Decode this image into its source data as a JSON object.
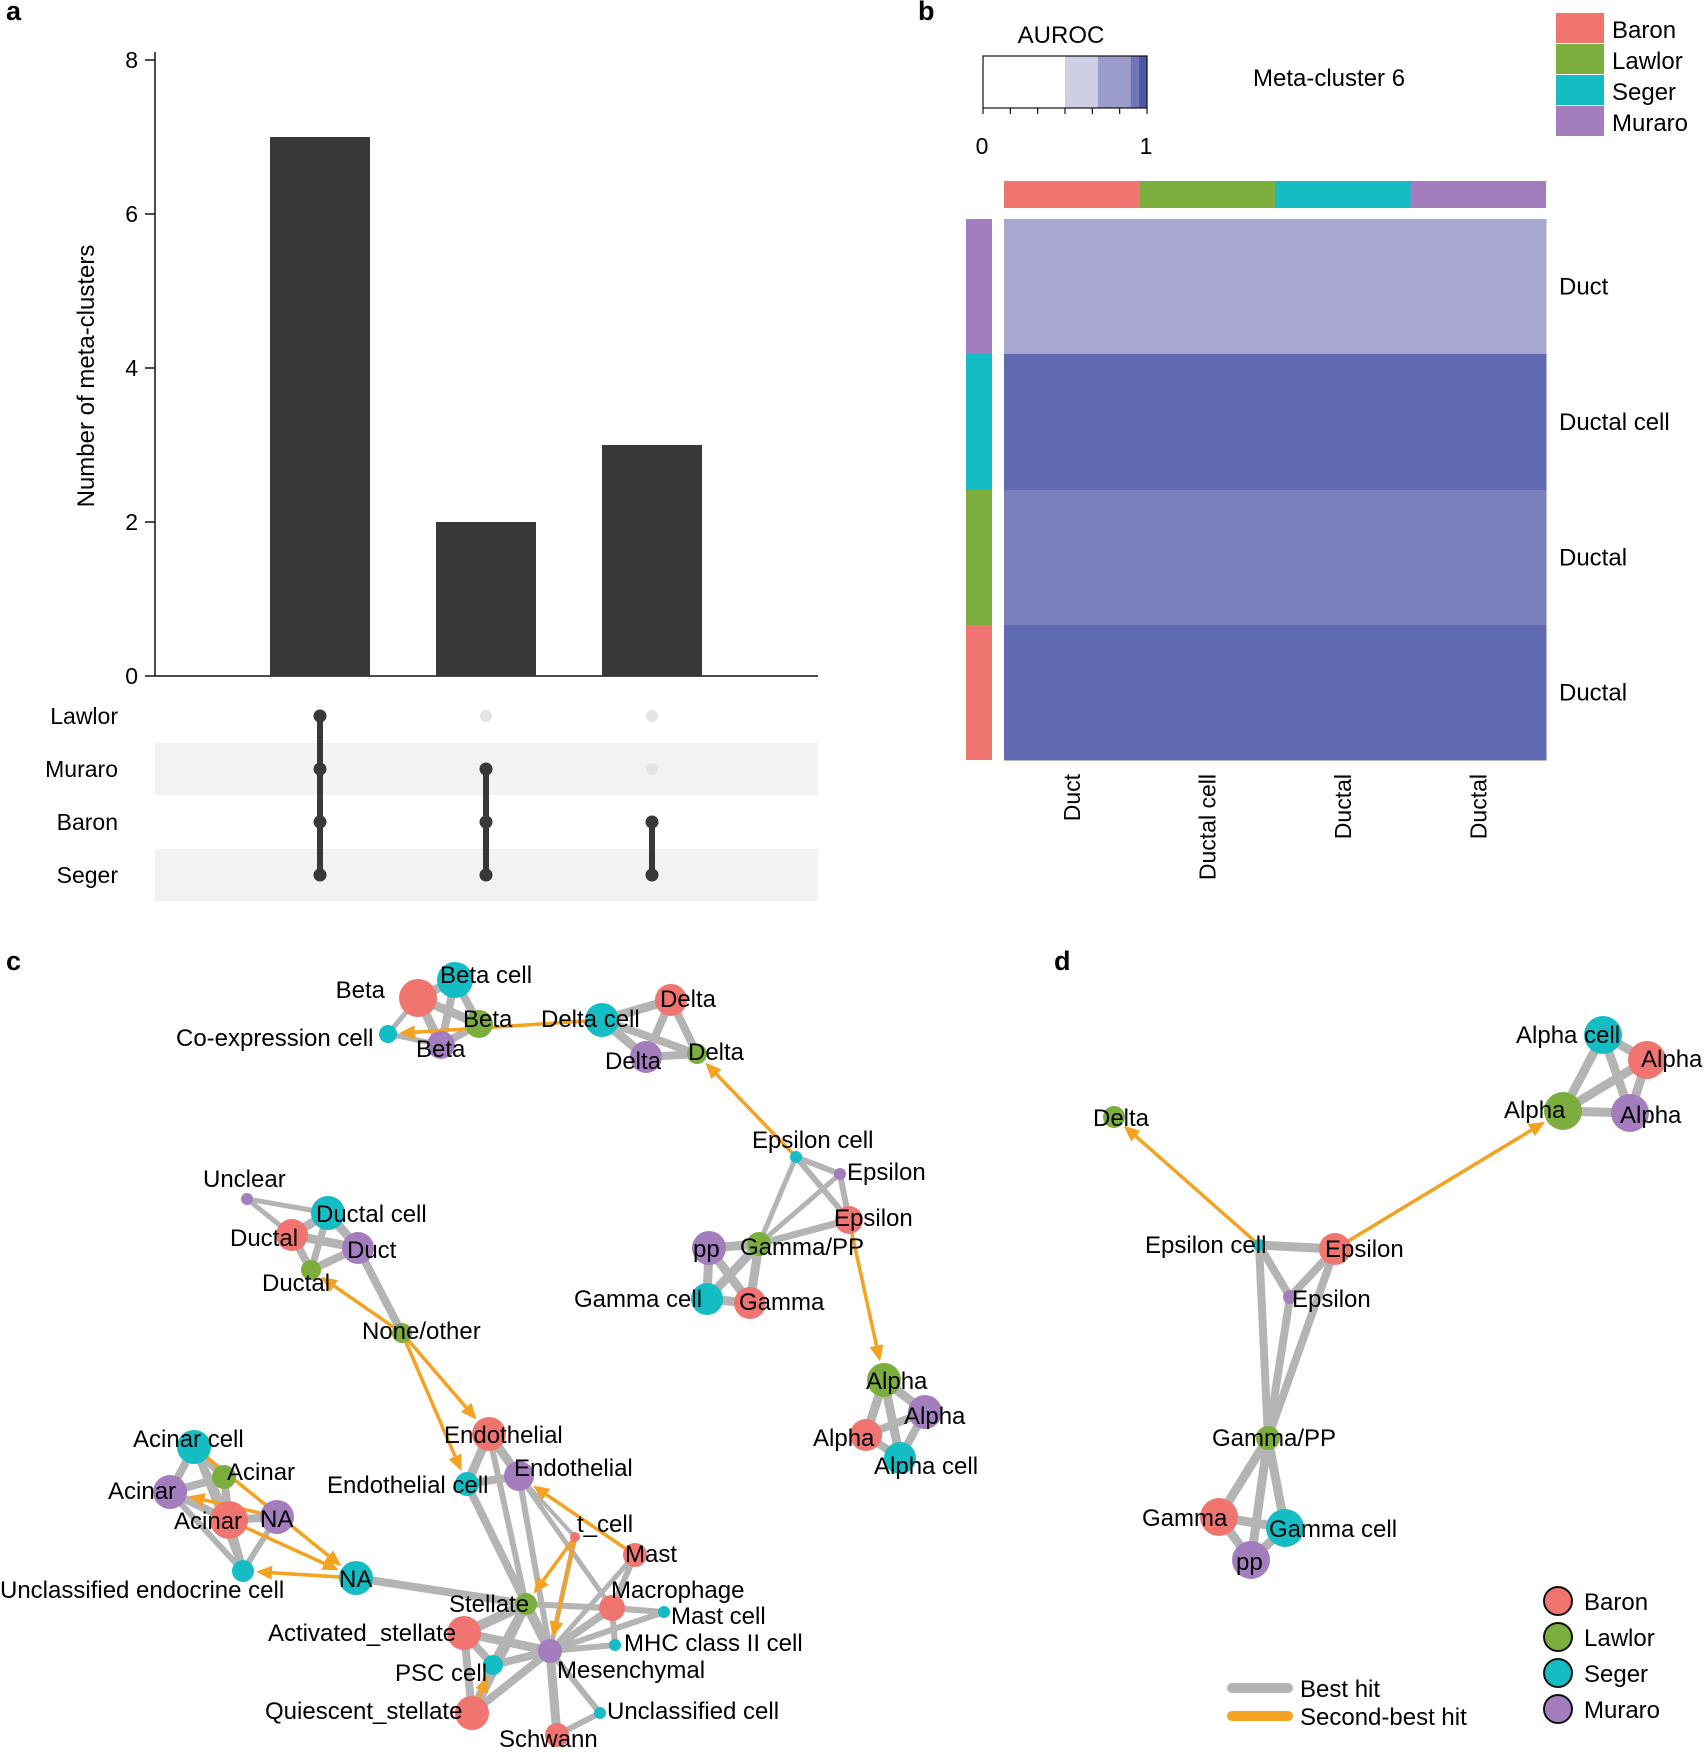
{
  "colors": {
    "Baron": "#f07470",
    "Lawlor": "#7cae3e",
    "Seger": "#14bcc4",
    "Muraro": "#a47dbe",
    "bar": "#383838",
    "best_hit": "#b4b4b4",
    "second_hit": "#f4a21f"
  },
  "panels": {
    "a": "a",
    "b": "b",
    "c": "c",
    "d": "d"
  },
  "chart_data": [
    {
      "panel": "a",
      "type": "bar",
      "ylabel": "Number of meta-clusters",
      "ylim": [
        0,
        8
      ],
      "yticks": [
        0,
        2,
        4,
        6,
        8
      ],
      "values": [
        7,
        2,
        3
      ],
      "sets": [
        "Lawlor",
        "Muraro",
        "Baron",
        "Seger"
      ],
      "memberships": [
        [
          "Lawlor",
          "Muraro",
          "Baron",
          "Seger"
        ],
        [
          "Muraro",
          "Baron",
          "Seger"
        ],
        [
          "Baron",
          "Seger"
        ]
      ]
    },
    {
      "panel": "b",
      "type": "heatmap",
      "title": "Meta-cluster 6",
      "colorbar_label": "AUROC",
      "colorbar_ticks": [
        "0",
        "1"
      ],
      "columns": [
        {
          "label": "Duct",
          "dataset": "Baron"
        },
        {
          "label": "Ductal cell",
          "dataset": "Lawlor"
        },
        {
          "label": "Ductal",
          "dataset": "Seger"
        },
        {
          "label": "Ductal",
          "dataset": "Muraro"
        }
      ],
      "rows": [
        {
          "label": "Duct",
          "dataset": "Muraro"
        },
        {
          "label": "Ductal cell",
          "dataset": "Seger"
        },
        {
          "label": "Ductal",
          "dataset": "Lawlor"
        },
        {
          "label": "Ductal",
          "dataset": "Baron"
        }
      ],
      "values": [
        [
          0.8,
          0.8,
          0.8,
          0.8
        ],
        [
          0.95,
          0.95,
          0.95,
          0.95
        ],
        [
          0.9,
          0.9,
          0.9,
          0.9
        ],
        [
          0.95,
          0.95,
          0.95,
          0.95
        ]
      ],
      "legend": [
        "Baron",
        "Lawlor",
        "Seger",
        "Muraro"
      ]
    },
    {
      "panel": "c",
      "type": "network",
      "nodes": [
        {
          "id": "c_beta_b",
          "label": "Beta",
          "dataset": "Baron"
        },
        {
          "id": "c_betacell",
          "label": "Beta cell",
          "dataset": "Seger"
        },
        {
          "id": "c_beta_l",
          "label": "Beta",
          "dataset": "Lawlor"
        },
        {
          "id": "c_beta_m",
          "label": "Beta",
          "dataset": "Muraro"
        },
        {
          "id": "c_coexp",
          "label": "Co-expression cell",
          "dataset": "Seger"
        },
        {
          "id": "c_deltacell",
          "label": "Delta cell",
          "dataset": "Seger"
        },
        {
          "id": "c_delta_b",
          "label": "Delta",
          "dataset": "Baron"
        },
        {
          "id": "c_delta_m",
          "label": "Delta",
          "dataset": "Muraro"
        },
        {
          "id": "c_delta_l",
          "label": "Delta",
          "dataset": "Lawlor"
        },
        {
          "id": "c_epscell",
          "label": "Epsilon cell",
          "dataset": "Seger"
        },
        {
          "id": "c_eps_m",
          "label": "Epsilon",
          "dataset": "Muraro"
        },
        {
          "id": "c_eps_b",
          "label": "Epsilon",
          "dataset": "Baron"
        },
        {
          "id": "c_pp",
          "label": "pp",
          "dataset": "Muraro"
        },
        {
          "id": "c_gammapp",
          "label": "Gamma/PP",
          "dataset": "Lawlor"
        },
        {
          "id": "c_gammacell",
          "label": "Gamma cell",
          "dataset": "Seger"
        },
        {
          "id": "c_gamma_b",
          "label": "Gamma",
          "dataset": "Baron"
        },
        {
          "id": "c_alpha_l",
          "label": "Alpha",
          "dataset": "Lawlor"
        },
        {
          "id": "c_alpha_m",
          "label": "Alpha",
          "dataset": "Muraro"
        },
        {
          "id": "c_alpha_b",
          "label": "Alpha",
          "dataset": "Baron"
        },
        {
          "id": "c_alphacell",
          "label": "Alpha cell",
          "dataset": "Seger"
        },
        {
          "id": "c_unclear",
          "label": "Unclear",
          "dataset": "Muraro"
        },
        {
          "id": "c_ductalcell",
          "label": "Ductal cell",
          "dataset": "Seger"
        },
        {
          "id": "c_ductal_b",
          "label": "Ductal",
          "dataset": "Baron"
        },
        {
          "id": "c_duct_m",
          "label": "Duct",
          "dataset": "Muraro"
        },
        {
          "id": "c_ductal_l",
          "label": "Ductal",
          "dataset": "Lawlor"
        },
        {
          "id": "c_none",
          "label": "None/other",
          "dataset": "Lawlor"
        },
        {
          "id": "c_endo_b",
          "label": "Endothelial",
          "dataset": "Baron"
        },
        {
          "id": "c_endo_m",
          "label": "Endothelial",
          "dataset": "Muraro"
        },
        {
          "id": "c_endocell",
          "label": "Endothelial cell",
          "dataset": "Seger"
        },
        {
          "id": "c_acinarcell",
          "label": "Acinar cell",
          "dataset": "Seger"
        },
        {
          "id": "c_acinar_l",
          "label": "Acinar",
          "dataset": "Lawlor"
        },
        {
          "id": "c_acinar_m",
          "label": "Acinar",
          "dataset": "Muraro"
        },
        {
          "id": "c_acinar_b",
          "label": "Acinar",
          "dataset": "Baron"
        },
        {
          "id": "c_na_m",
          "label": "NA",
          "dataset": "Muraro"
        },
        {
          "id": "c_na_s",
          "label": "NA",
          "dataset": "Seger"
        },
        {
          "id": "c_unclassendo",
          "label": "Unclassified endocrine cell",
          "dataset": "Seger"
        },
        {
          "id": "c_tcell",
          "label": "t_cell",
          "dataset": "Baron"
        },
        {
          "id": "c_mast_b",
          "label": "Mast",
          "dataset": "Baron"
        },
        {
          "id": "c_macro",
          "label": "Macrophage",
          "dataset": "Baron"
        },
        {
          "id": "c_mastcell",
          "label": "Mast cell",
          "dataset": "Seger"
        },
        {
          "id": "c_mhc",
          "label": "MHC class II cell",
          "dataset": "Seger"
        },
        {
          "id": "c_stellate",
          "label": "Stellate",
          "dataset": "Lawlor"
        },
        {
          "id": "c_actstell",
          "label": "Activated_stellate",
          "dataset": "Baron"
        },
        {
          "id": "c_mesen",
          "label": "Mesenchymal",
          "dataset": "Muraro"
        },
        {
          "id": "c_psc",
          "label": "PSC cell",
          "dataset": "Seger"
        },
        {
          "id": "c_quies",
          "label": "Quiescent_stellate",
          "dataset": "Baron"
        },
        {
          "id": "c_unclasscell",
          "label": "Unclassified cell",
          "dataset": "Seger"
        },
        {
          "id": "c_schwann",
          "label": "Schwann",
          "dataset": "Baron"
        }
      ]
    },
    {
      "panel": "d",
      "type": "network",
      "nodes": [
        {
          "id": "d_alphacell",
          "label": "Alpha cell",
          "dataset": "Seger"
        },
        {
          "id": "d_alpha_b",
          "label": "Alpha",
          "dataset": "Baron"
        },
        {
          "id": "d_alpha_l",
          "label": "Alpha",
          "dataset": "Lawlor"
        },
        {
          "id": "d_alpha_m",
          "label": "Alpha",
          "dataset": "Muraro"
        },
        {
          "id": "d_delta_l",
          "label": "Delta",
          "dataset": "Lawlor"
        },
        {
          "id": "d_epscell",
          "label": "Epsilon cell",
          "dataset": "Seger"
        },
        {
          "id": "d_eps_b",
          "label": "Epsilon",
          "dataset": "Baron"
        },
        {
          "id": "d_eps_m",
          "label": "Epsilon",
          "dataset": "Muraro"
        },
        {
          "id": "d_gammapp",
          "label": "Gamma/PP",
          "dataset": "Lawlor"
        },
        {
          "id": "d_gamma_b",
          "label": "Gamma",
          "dataset": "Baron"
        },
        {
          "id": "d_gammacell",
          "label": "Gamma cell",
          "dataset": "Seger"
        },
        {
          "id": "d_pp",
          "label": "pp",
          "dataset": "Muraro"
        }
      ],
      "legend_datasets": [
        "Baron",
        "Lawlor",
        "Seger",
        "Muraro"
      ],
      "legend_edges": [
        "Best hit",
        "Second-best hit"
      ]
    }
  ]
}
